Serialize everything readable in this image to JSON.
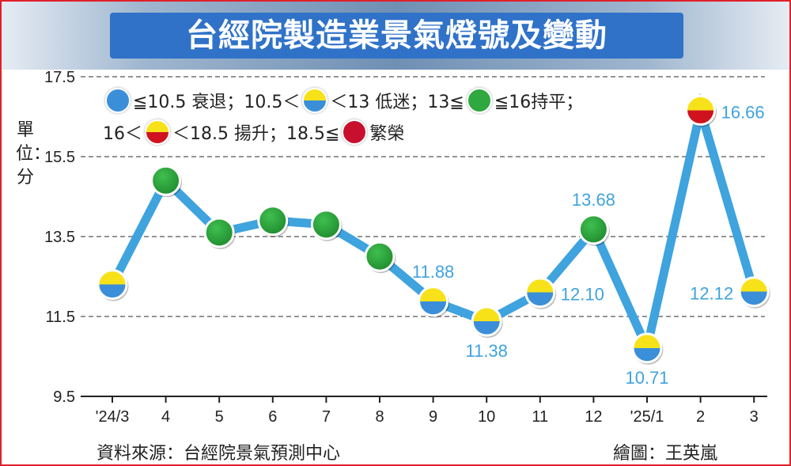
{
  "title": "台經院製造業景氣燈號及變動",
  "unit_label": "單位：分",
  "legend": {
    "line1": [
      {
        "icon": "blue-light",
        "color": "#3a8fd8"
      },
      {
        "text": "≦10.5 衰退；10.5＜"
      },
      {
        "icon": "yellow-blue-light",
        "color": "#f7e21a"
      },
      {
        "text": "＜13 低迷；13≦"
      },
      {
        "icon": "green-light",
        "color": "#2ea83f"
      },
      {
        "text": "≦16持平；"
      }
    ],
    "line2": [
      {
        "text": "16＜"
      },
      {
        "icon": "yellow-red-light",
        "color": "#f7e21a"
      },
      {
        "text": "＜18.5 揚升；18.5≦"
      },
      {
        "icon": "red-light",
        "color": "#c8102e"
      },
      {
        "text": "繁榮"
      }
    ]
  },
  "source": "資料來源：台經院景氣預測中心",
  "credit": "繪圖：王英嵐",
  "colors": {
    "line": "#3fa3de",
    "blue": "#3a8fd8",
    "yellow": "#f7e21a",
    "green": "#2ea83f",
    "red": "#d0121f",
    "frame": "#e0202a",
    "title_bg": "#2f72c8"
  },
  "chart_data": {
    "type": "line",
    "title": "台經院製造業景氣燈號及變動",
    "ylabel": "單位：分",
    "ylim": [
      9.5,
      17.5
    ],
    "yticks": [
      "9.5",
      "11.5",
      "13.5",
      "15.5",
      "17.5"
    ],
    "ytick_values": [
      9.5,
      11.5,
      13.5,
      15.5,
      17.5
    ],
    "grid": "horizontal dashed",
    "categories": [
      "'24/3",
      "4",
      "5",
      "6",
      "7",
      "8",
      "9",
      "10",
      "11",
      "12",
      "'25/1",
      "2",
      "3"
    ],
    "values": [
      12.3,
      14.9,
      13.6,
      13.9,
      13.8,
      13.0,
      11.88,
      11.38,
      12.1,
      13.68,
      10.71,
      16.66,
      12.12
    ],
    "lights": [
      "yellow-blue",
      "green",
      "green",
      "green",
      "green",
      "green",
      "yellow-blue",
      "yellow-blue",
      "yellow-blue",
      "green",
      "yellow-blue",
      "yellow-red",
      "yellow-blue"
    ],
    "data_labels": [
      {
        "index": 6,
        "text": "11.88",
        "pos": "above"
      },
      {
        "index": 7,
        "text": "11.38",
        "pos": "below"
      },
      {
        "index": 8,
        "text": "12.10",
        "pos": "right"
      },
      {
        "index": 9,
        "text": "13.68",
        "pos": "above"
      },
      {
        "index": 10,
        "text": "10.71",
        "pos": "below"
      },
      {
        "index": 11,
        "text": "16.66",
        "pos": "right"
      },
      {
        "index": 12,
        "text": "12.12",
        "pos": "left"
      }
    ]
  }
}
